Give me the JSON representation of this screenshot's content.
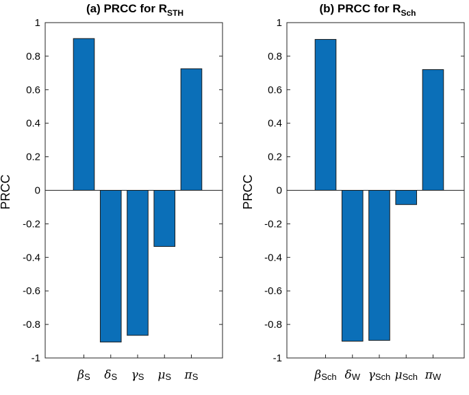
{
  "charts": [
    {
      "type": "bar",
      "title": "(a) PRCC for R",
      "title_sub": "STH",
      "ylabel": "PRCC",
      "ylim": [
        -1,
        1
      ],
      "yticks": [
        1,
        0.8,
        0.6,
        0.4,
        0.2,
        0,
        -0.2,
        -0.4,
        -0.6,
        -0.8,
        -1
      ],
      "ytick_labels": [
        "1",
        "0.8",
        "0.6",
        "0.4",
        "0.2",
        "0",
        "-0.2",
        "-0.4",
        "-0.6",
        "-0.8",
        "-1"
      ],
      "categories": [
        {
          "symbol": "β",
          "sub": "S"
        },
        {
          "symbol": "δ",
          "sub": "S"
        },
        {
          "symbol": "γ",
          "sub": "S"
        },
        {
          "symbol": "μ",
          "sub": "S"
        },
        {
          "symbol": "π",
          "sub": "S"
        }
      ],
      "values": [
        0.905,
        -0.905,
        -0.865,
        -0.335,
        0.725
      ],
      "bar_color": "#0b6fb8"
    },
    {
      "type": "bar",
      "title": "(b) PRCC for R",
      "title_sub": "Sch",
      "ylabel": "PRCC",
      "ylim": [
        -1,
        1
      ],
      "yticks": [
        1,
        0.8,
        0.6,
        0.4,
        0.2,
        0,
        -0.2,
        -0.4,
        -0.6,
        -0.8,
        -1
      ],
      "ytick_labels": [
        "1",
        "0.8",
        "0.6",
        "0.4",
        "0.2",
        "0",
        "-0.2",
        "-0.4",
        "-0.6",
        "-0.8",
        "-1"
      ],
      "categories": [
        {
          "symbol": "β",
          "sub": "Sch"
        },
        {
          "symbol": "δ",
          "sub": "W"
        },
        {
          "symbol": "γ",
          "sub": "Sch"
        },
        {
          "symbol": "μ",
          "sub": "Sch"
        },
        {
          "symbol": "π",
          "sub": "W"
        }
      ],
      "values": [
        0.9,
        -0.9,
        -0.895,
        -0.085,
        0.72
      ],
      "bar_color": "#0b6fb8"
    }
  ],
  "chart_data": [
    {
      "type": "bar",
      "title": "(a) PRCC for R_STH",
      "ylabel": "PRCC",
      "xlabel": "",
      "categories": [
        "βS",
        "δS",
        "γS",
        "μS",
        "πS"
      ],
      "values": [
        0.905,
        -0.905,
        -0.865,
        -0.335,
        0.725
      ],
      "ylim": [
        -1,
        1
      ],
      "grid": false
    },
    {
      "type": "bar",
      "title": "(b) PRCC for R_Sch",
      "ylabel": "PRCC",
      "xlabel": "",
      "categories": [
        "βSch",
        "δW",
        "γSch",
        "μSch",
        "πW"
      ],
      "values": [
        0.9,
        -0.9,
        -0.895,
        -0.085,
        0.72
      ],
      "ylim": [
        -1,
        1
      ],
      "grid": false
    }
  ]
}
